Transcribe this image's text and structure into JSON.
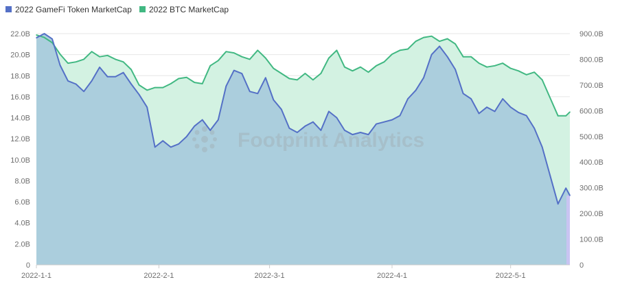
{
  "watermark": "Footprint Analytics",
  "colors": {
    "gamefi_line": "#5470c6",
    "gamefi_fill": "#a9cbdc",
    "btc_line": "#41b882",
    "btc_fill": "#d3f2e2",
    "grid": "#e6e6e6",
    "axis_text": "#6e6e6e",
    "highlight_bar": "#c9c4f2"
  },
  "chart_data": {
    "type": "area",
    "title": "",
    "legend_position": "top-left",
    "grid": true,
    "x_ticks": [
      "2022-1-1",
      "2022-2-1",
      "2022-3-1",
      "2022-4-1",
      "2022-5-1"
    ],
    "x_range": [
      "2022-01-01",
      "2022-05-16"
    ],
    "y_left": {
      "range": [
        0,
        22
      ],
      "ticks": [
        "0",
        "2.0B",
        "4.0B",
        "6.0B",
        "8.0B",
        "10.0B",
        "12.0B",
        "14.0B",
        "16.0B",
        "18.0B",
        "20.0B",
        "22.0B"
      ]
    },
    "y_right": {
      "range": [
        0,
        900
      ],
      "ticks": [
        "0",
        "100.0B",
        "200.0B",
        "300.0B",
        "400.0B",
        "500.0B",
        "600.0B",
        "700.0B",
        "800.0B",
        "900.0B"
      ]
    },
    "series": [
      {
        "name": "2022 GameFi Token MarketCap",
        "axis": "left",
        "unit": "B USD",
        "points": [
          [
            "2022-01-01",
            21.6
          ],
          [
            "2022-01-03",
            22.0
          ],
          [
            "2022-01-05",
            21.5
          ],
          [
            "2022-01-07",
            19.0
          ],
          [
            "2022-01-09",
            17.5
          ],
          [
            "2022-01-11",
            17.2
          ],
          [
            "2022-01-13",
            16.5
          ],
          [
            "2022-01-15",
            17.5
          ],
          [
            "2022-01-17",
            18.8
          ],
          [
            "2022-01-19",
            17.9
          ],
          [
            "2022-01-21",
            17.9
          ],
          [
            "2022-01-23",
            18.3
          ],
          [
            "2022-01-25",
            17.2
          ],
          [
            "2022-01-27",
            16.2
          ],
          [
            "2022-01-29",
            15.0
          ],
          [
            "2022-01-31",
            11.2
          ],
          [
            "2022-02-02",
            11.8
          ],
          [
            "2022-02-04",
            11.2
          ],
          [
            "2022-02-06",
            11.5
          ],
          [
            "2022-02-08",
            12.2
          ],
          [
            "2022-02-10",
            13.2
          ],
          [
            "2022-02-12",
            13.8
          ],
          [
            "2022-02-14",
            12.8
          ],
          [
            "2022-02-16",
            13.8
          ],
          [
            "2022-02-18",
            17.0
          ],
          [
            "2022-02-20",
            18.5
          ],
          [
            "2022-02-22",
            18.2
          ],
          [
            "2022-02-24",
            16.5
          ],
          [
            "2022-02-26",
            16.3
          ],
          [
            "2022-02-28",
            17.8
          ],
          [
            "2022-03-02",
            15.7
          ],
          [
            "2022-03-04",
            14.8
          ],
          [
            "2022-03-06",
            13.0
          ],
          [
            "2022-03-08",
            12.6
          ],
          [
            "2022-03-10",
            13.2
          ],
          [
            "2022-03-12",
            13.6
          ],
          [
            "2022-03-14",
            12.8
          ],
          [
            "2022-03-16",
            14.6
          ],
          [
            "2022-03-18",
            14.0
          ],
          [
            "2022-03-20",
            12.8
          ],
          [
            "2022-03-22",
            12.4
          ],
          [
            "2022-03-24",
            12.6
          ],
          [
            "2022-03-26",
            12.4
          ],
          [
            "2022-03-28",
            13.4
          ],
          [
            "2022-03-30",
            13.6
          ],
          [
            "2022-04-01",
            13.8
          ],
          [
            "2022-04-03",
            14.2
          ],
          [
            "2022-04-05",
            15.8
          ],
          [
            "2022-04-07",
            16.6
          ],
          [
            "2022-04-09",
            17.8
          ],
          [
            "2022-04-11",
            20.0
          ],
          [
            "2022-04-13",
            20.8
          ],
          [
            "2022-04-15",
            19.8
          ],
          [
            "2022-04-17",
            18.6
          ],
          [
            "2022-04-19",
            16.3
          ],
          [
            "2022-04-21",
            15.8
          ],
          [
            "2022-04-23",
            14.4
          ],
          [
            "2022-04-25",
            15.0
          ],
          [
            "2022-04-27",
            14.6
          ],
          [
            "2022-04-29",
            15.8
          ],
          [
            "2022-05-01",
            15.0
          ],
          [
            "2022-05-03",
            14.5
          ],
          [
            "2022-05-05",
            14.2
          ],
          [
            "2022-05-07",
            13.0
          ],
          [
            "2022-05-09",
            11.2
          ],
          [
            "2022-05-11",
            8.5
          ],
          [
            "2022-05-13",
            5.8
          ],
          [
            "2022-05-15",
            7.3
          ],
          [
            "2022-05-16",
            6.6
          ]
        ]
      },
      {
        "name": "2022 BTC MarketCap",
        "axis": "right",
        "unit": "B USD",
        "points": [
          [
            "2022-01-01",
            895
          ],
          [
            "2022-01-03",
            885
          ],
          [
            "2022-01-05",
            865
          ],
          [
            "2022-01-07",
            820
          ],
          [
            "2022-01-09",
            785
          ],
          [
            "2022-01-11",
            790
          ],
          [
            "2022-01-13",
            800
          ],
          [
            "2022-01-15",
            830
          ],
          [
            "2022-01-17",
            810
          ],
          [
            "2022-01-19",
            815
          ],
          [
            "2022-01-21",
            800
          ],
          [
            "2022-01-23",
            790
          ],
          [
            "2022-01-25",
            760
          ],
          [
            "2022-01-27",
            700
          ],
          [
            "2022-01-29",
            680
          ],
          [
            "2022-01-31",
            690
          ],
          [
            "2022-02-02",
            690
          ],
          [
            "2022-02-04",
            705
          ],
          [
            "2022-02-06",
            725
          ],
          [
            "2022-02-08",
            730
          ],
          [
            "2022-02-10",
            710
          ],
          [
            "2022-02-12",
            705
          ],
          [
            "2022-02-14",
            775
          ],
          [
            "2022-02-16",
            795
          ],
          [
            "2022-02-18",
            830
          ],
          [
            "2022-02-20",
            825
          ],
          [
            "2022-02-22",
            810
          ],
          [
            "2022-02-24",
            800
          ],
          [
            "2022-02-26",
            835
          ],
          [
            "2022-02-28",
            805
          ],
          [
            "2022-03-02",
            765
          ],
          [
            "2022-03-04",
            745
          ],
          [
            "2022-03-06",
            725
          ],
          [
            "2022-03-08",
            720
          ],
          [
            "2022-03-10",
            745
          ],
          [
            "2022-03-12",
            720
          ],
          [
            "2022-03-14",
            745
          ],
          [
            "2022-03-16",
            805
          ],
          [
            "2022-03-18",
            835
          ],
          [
            "2022-03-20",
            770
          ],
          [
            "2022-03-22",
            755
          ],
          [
            "2022-03-24",
            770
          ],
          [
            "2022-03-26",
            750
          ],
          [
            "2022-03-28",
            775
          ],
          [
            "2022-03-30",
            790
          ],
          [
            "2022-04-01",
            820
          ],
          [
            "2022-04-03",
            835
          ],
          [
            "2022-04-05",
            840
          ],
          [
            "2022-04-07",
            870
          ],
          [
            "2022-04-09",
            885
          ],
          [
            "2022-04-11",
            890
          ],
          [
            "2022-04-13",
            870
          ],
          [
            "2022-04-15",
            880
          ],
          [
            "2022-04-17",
            860
          ],
          [
            "2022-04-19",
            810
          ],
          [
            "2022-04-21",
            810
          ],
          [
            "2022-04-23",
            785
          ],
          [
            "2022-04-25",
            770
          ],
          [
            "2022-04-27",
            775
          ],
          [
            "2022-04-29",
            785
          ],
          [
            "2022-05-01",
            765
          ],
          [
            "2022-05-03",
            755
          ],
          [
            "2022-05-05",
            740
          ],
          [
            "2022-05-07",
            750
          ],
          [
            "2022-05-09",
            720
          ],
          [
            "2022-05-11",
            650
          ],
          [
            "2022-05-13",
            580
          ],
          [
            "2022-05-15",
            580
          ],
          [
            "2022-05-16",
            595
          ]
        ]
      }
    ]
  }
}
